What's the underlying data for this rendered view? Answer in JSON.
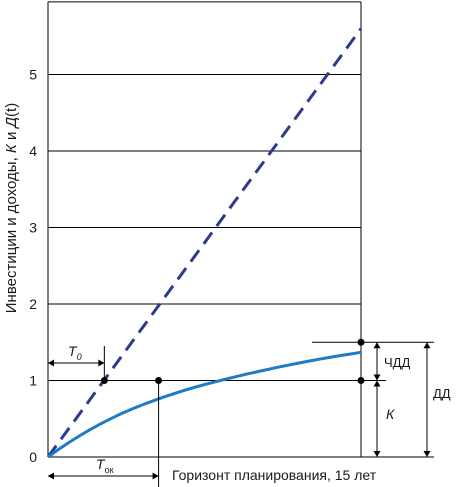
{
  "chart_data": {
    "type": "line",
    "ylabel_main": "Инвестиции и доходы, ",
    "ylabel_italic": "К",
    "ylabel_mid": " и ",
    "ylabel_func": "Д",
    "ylabel_tail": "(t)",
    "horizon_label": "Горизонт планирования, 15 лет",
    "yticks": [
      0,
      1,
      2,
      3,
      4,
      5
    ],
    "ylim": [
      0,
      5.95
    ],
    "xlim": [
      0,
      15
    ],
    "grid": true,
    "series": [
      {
        "name": "",
        "style": "dashed",
        "color": "#2e3a8c",
        "x": [
          0,
          15
        ],
        "y": [
          0,
          5.6
        ]
      },
      {
        "name": "",
        "style": "solid",
        "color": "#1e7bc4",
        "x": [
          0,
          0.5,
          1,
          1.5,
          2,
          2.5,
          3,
          3.5,
          4,
          4.5,
          5,
          5.5,
          6,
          6.5,
          7,
          7.5,
          8,
          8.5,
          9,
          9.5,
          10,
          10.5,
          11,
          11.5,
          12,
          12.5,
          13,
          13.5,
          14,
          14.5,
          15
        ],
        "y": [
          0,
          0.098,
          0.19,
          0.275,
          0.355,
          0.43,
          0.5,
          0.565,
          0.625,
          0.68,
          0.73,
          0.78,
          0.825,
          0.868,
          0.908,
          0.946,
          0.982,
          1.017,
          1.05,
          1.082,
          1.113,
          1.143,
          1.172,
          1.2,
          1.227,
          1.253,
          1.278,
          1.302,
          1.325,
          1.347,
          1.368
        ]
      }
    ],
    "markers": [
      {
        "x": 2.7,
        "y": 1.0
      },
      {
        "x": 5.3,
        "y": 1.0
      },
      {
        "x": 15,
        "y": 1.0
      },
      {
        "x": 15,
        "y": 1.5
      }
    ],
    "annotations": {
      "t0_main": "T",
      "t0_sub": "0",
      "t0_x": 2.7,
      "tok_main": "T",
      "tok_sub": "ок",
      "tok_x": 5.3,
      "chdd": "ЧДД",
      "k": "К",
      "dd": "ДД"
    }
  }
}
